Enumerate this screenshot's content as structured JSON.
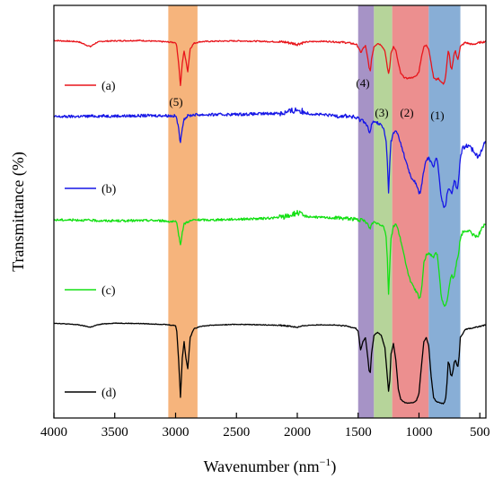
{
  "chart_data": {
    "type": "line",
    "xlabel": "Wavenumber (nm",
    "xlabel_sup": "−1",
    "xlabel_close": ")",
    "ylabel": "Transmittance (%)",
    "xlim": [
      4000,
      450
    ],
    "x_reversed": true,
    "x_ticks": [
      4000,
      3500,
      3000,
      2500,
      2000,
      1500,
      1000,
      500
    ],
    "x_tick_labels": [
      "4000",
      "3500",
      "3000",
      "2500",
      "2000",
      "1500",
      "1000",
      "500"
    ],
    "ylim": [
      0,
      100
    ],
    "y_ticks_labeled": false,
    "grid": false,
    "legend_position": "left",
    "bands": [
      {
        "label": "(5)",
        "x_range": [
          3060,
          2820
        ],
        "color": "#f6b47c"
      },
      {
        "label": "(4)",
        "x_range": [
          1500,
          1370
        ],
        "color": "#a693c6"
      },
      {
        "label": "(3)",
        "x_range": [
          1370,
          1220
        ],
        "color": "#b6d49a"
      },
      {
        "label": "(2)",
        "x_range": [
          1220,
          920
        ],
        "color": "#ec8f8f"
      },
      {
        "label": "(1)",
        "x_range": [
          920,
          660
        ],
        "color": "#88aed6"
      }
    ],
    "series": [
      {
        "name": "(a)",
        "color": "#e8151b",
        "noise": 0.15,
        "x": [
          4000,
          3800,
          3700,
          3650,
          3600,
          3500,
          3300,
          3100,
          3000,
          2990,
          2975,
          2960,
          2945,
          2930,
          2915,
          2900,
          2880,
          2850,
          2800,
          2700,
          2500,
          2300,
          2100,
          2000,
          1950,
          1900,
          1800,
          1700,
          1600,
          1520,
          1500,
          1480,
          1460,
          1440,
          1420,
          1410,
          1400,
          1390,
          1370,
          1340,
          1310,
          1280,
          1260,
          1250,
          1240,
          1230,
          1210,
          1190,
          1170,
          1150,
          1120,
          1100,
          1080,
          1060,
          1040,
          1020,
          1000,
          980,
          960,
          940,
          920,
          900,
          880,
          860,
          840,
          820,
          800,
          790,
          780,
          770,
          760,
          750,
          740,
          730,
          720,
          710,
          700,
          690,
          680,
          670,
          660,
          620,
          560,
          500,
          460,
          450
        ],
        "y": [
          91.5,
          91.2,
          90.0,
          91.0,
          91.3,
          91.4,
          91.5,
          91.2,
          91.0,
          90.0,
          86.0,
          80.5,
          86.0,
          89.0,
          86.5,
          84.0,
          89.5,
          90.8,
          91.2,
          91.3,
          91.4,
          91.3,
          91.1,
          90.6,
          91.0,
          91.2,
          91.3,
          91.2,
          91.0,
          90.6,
          90.0,
          88.5,
          89.5,
          90.2,
          87.0,
          85.0,
          84.0,
          87.0,
          90.0,
          90.8,
          90.4,
          89.0,
          85.0,
          83.5,
          85.0,
          88.5,
          90.0,
          89.0,
          86.0,
          83.5,
          82.5,
          82.3,
          82.4,
          82.5,
          82.6,
          83.0,
          84.0,
          87.5,
          90.0,
          90.3,
          89.5,
          86.0,
          82.5,
          82.0,
          82.3,
          81.5,
          81.0,
          81.5,
          83.0,
          86.0,
          89.0,
          88.0,
          85.0,
          84.5,
          86.5,
          88.5,
          89.0,
          87.5,
          87.0,
          88.5,
          90.0,
          91.0,
          90.5,
          91.0,
          91.2,
          91.5
        ]
      },
      {
        "name": "(b)",
        "color": "#1616e6",
        "noise": 0.35,
        "x": [
          4000,
          3800,
          3600,
          3400,
          3200,
          3100,
          3000,
          2990,
          2975,
          2960,
          2945,
          2930,
          2900,
          2850,
          2700,
          2500,
          2300,
          2150,
          2100,
          2050,
          2000,
          1950,
          1900,
          1800,
          1700,
          1600,
          1550,
          1500,
          1450,
          1420,
          1410,
          1400,
          1390,
          1370,
          1340,
          1310,
          1290,
          1270,
          1260,
          1250,
          1240,
          1230,
          1210,
          1190,
          1170,
          1150,
          1120,
          1100,
          1080,
          1060,
          1040,
          1020,
          1010,
          1000,
          990,
          980,
          970,
          960,
          940,
          920,
          900,
          880,
          860,
          850,
          840,
          830,
          820,
          800,
          790,
          780,
          770,
          760,
          750,
          740,
          730,
          720,
          710,
          700,
          690,
          680,
          670,
          660,
          640,
          600,
          560,
          520,
          500,
          480,
          460,
          450
        ],
        "y": [
          73.0,
          73.1,
          73.2,
          73.2,
          73.3,
          73.3,
          73.2,
          72.5,
          70.0,
          66.5,
          70.5,
          72.5,
          73.2,
          73.5,
          73.5,
          73.6,
          73.7,
          73.9,
          74.0,
          74.3,
          74.8,
          74.1,
          73.8,
          73.5,
          73.3,
          73.2,
          73.0,
          72.5,
          72.0,
          70.5,
          69.0,
          69.5,
          71.0,
          72.0,
          71.5,
          71.0,
          70.0,
          67.0,
          62.0,
          54.5,
          62.0,
          67.0,
          69.0,
          69.5,
          68.5,
          66.5,
          63.5,
          61.5,
          59.5,
          58.0,
          57.5,
          56.5,
          55.5,
          54.5,
          54.8,
          56.0,
          58.0,
          60.0,
          62.5,
          63.0,
          62.0,
          61.0,
          63.0,
          62.5,
          60.0,
          57.0,
          54.0,
          51.5,
          51.2,
          51.8,
          54.0,
          55.5,
          55.8,
          55.0,
          54.5,
          56.0,
          57.5,
          57.0,
          55.5,
          56.5,
          59.5,
          63.0,
          65.5,
          66.0,
          65.0,
          63.5,
          64.0,
          65.5,
          66.5,
          66.8
        ]
      },
      {
        "name": "(c)",
        "color": "#14e014",
        "noise": 0.28,
        "x": [
          4000,
          3800,
          3600,
          3400,
          3200,
          3100,
          3000,
          2990,
          2975,
          2960,
          2945,
          2930,
          2900,
          2850,
          2700,
          2500,
          2300,
          2150,
          2100,
          2050,
          2000,
          1950,
          1900,
          1800,
          1700,
          1600,
          1550,
          1500,
          1450,
          1420,
          1410,
          1400,
          1390,
          1370,
          1340,
          1310,
          1290,
          1270,
          1260,
          1250,
          1240,
          1230,
          1210,
          1190,
          1170,
          1150,
          1120,
          1100,
          1080,
          1060,
          1040,
          1020,
          1010,
          1000,
          990,
          980,
          970,
          960,
          940,
          920,
          900,
          880,
          860,
          850,
          840,
          830,
          820,
          800,
          790,
          780,
          770,
          760,
          750,
          740,
          730,
          720,
          710,
          700,
          690,
          680,
          670,
          660,
          640,
          600,
          560,
          520,
          500,
          480,
          460,
          450
        ],
        "y": [
          48.0,
          48.0,
          47.8,
          47.8,
          47.9,
          47.8,
          47.5,
          47.0,
          44.5,
          42.0,
          45.0,
          47.0,
          47.6,
          48.0,
          48.0,
          48.2,
          48.3,
          48.6,
          48.8,
          49.2,
          49.8,
          49.0,
          48.8,
          48.6,
          48.5,
          48.4,
          48.3,
          48.0,
          47.8,
          47.0,
          46.0,
          46.0,
          47.0,
          47.5,
          47.2,
          46.8,
          46.5,
          44.0,
          38.5,
          30.0,
          37.0,
          43.5,
          46.5,
          47.0,
          45.5,
          43.0,
          39.0,
          36.5,
          34.0,
          32.5,
          31.5,
          30.5,
          30.0,
          29.0,
          29.3,
          31.0,
          34.0,
          37.5,
          39.5,
          40.0,
          39.5,
          39.0,
          40.0,
          39.5,
          37.0,
          34.0,
          30.0,
          27.5,
          27.0,
          27.2,
          28.5,
          30.0,
          32.0,
          34.0,
          34.5,
          34.0,
          34.5,
          36.5,
          38.0,
          39.0,
          41.0,
          43.5,
          45.0,
          45.5,
          44.5,
          44.0,
          45.0,
          46.0,
          46.8,
          47.0
        ]
      },
      {
        "name": "(d)",
        "color": "#000000",
        "noise": 0.08,
        "x": [
          4000,
          3800,
          3700,
          3650,
          3600,
          3500,
          3300,
          3100,
          3000,
          2990,
          2975,
          2960,
          2945,
          2930,
          2915,
          2900,
          2880,
          2850,
          2800,
          2700,
          2500,
          2300,
          2100,
          2000,
          1950,
          1900,
          1800,
          1700,
          1600,
          1520,
          1500,
          1480,
          1460,
          1440,
          1420,
          1410,
          1400,
          1390,
          1370,
          1340,
          1310,
          1280,
          1260,
          1250,
          1240,
          1230,
          1210,
          1190,
          1170,
          1150,
          1120,
          1100,
          1080,
          1060,
          1040,
          1020,
          1000,
          980,
          960,
          940,
          920,
          900,
          880,
          860,
          840,
          820,
          800,
          790,
          780,
          770,
          760,
          750,
          740,
          730,
          720,
          710,
          700,
          690,
          680,
          670,
          660,
          620,
          560,
          500,
          460,
          450
        ],
        "y": [
          23.0,
          22.6,
          22.0,
          22.5,
          22.8,
          23.0,
          22.9,
          22.7,
          22.4,
          21.0,
          14.0,
          5.0,
          14.5,
          18.5,
          14.5,
          12.0,
          19.5,
          21.6,
          22.2,
          22.5,
          22.7,
          22.6,
          22.4,
          22.0,
          22.3,
          22.5,
          22.6,
          22.5,
          22.3,
          21.8,
          21.0,
          16.5,
          18.5,
          19.5,
          14.5,
          11.5,
          11.0,
          15.5,
          20.0,
          20.8,
          20.0,
          17.0,
          10.0,
          6.5,
          9.0,
          15.5,
          18.0,
          14.0,
          7.0,
          4.5,
          3.8,
          3.6,
          3.6,
          3.7,
          3.8,
          4.3,
          6.0,
          12.5,
          18.5,
          19.5,
          17.5,
          10.0,
          5.0,
          4.0,
          3.8,
          3.6,
          3.5,
          3.8,
          5.0,
          8.5,
          13.5,
          13.0,
          10.5,
          10.2,
          11.5,
          13.5,
          14.0,
          13.0,
          12.5,
          15.0,
          19.5,
          21.5,
          21.8,
          22.2,
          22.5,
          22.7
        ]
      }
    ]
  }
}
